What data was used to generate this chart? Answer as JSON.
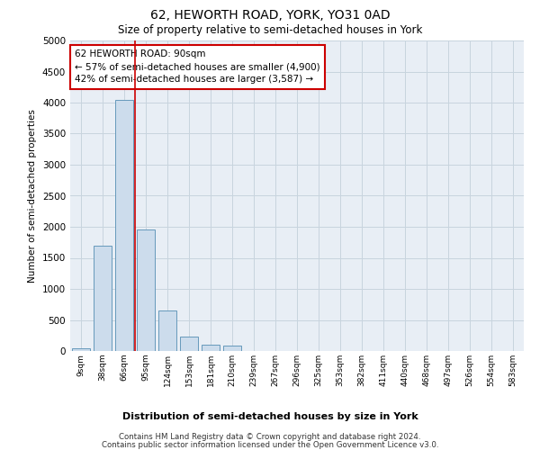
{
  "title": "62, HEWORTH ROAD, YORK, YO31 0AD",
  "subtitle": "Size of property relative to semi-detached houses in York",
  "xlabel": "Distribution of semi-detached houses by size in York",
  "ylabel": "Number of semi-detached properties",
  "bar_color": "#ccdcec",
  "bar_edge_color": "#6699bb",
  "vline_color": "#cc0000",
  "vline_x_index": 2,
  "annotation_text": "62 HEWORTH ROAD: 90sqm\n← 57% of semi-detached houses are smaller (4,900)\n42% of semi-detached houses are larger (3,587) →",
  "annotation_box_color": "#ffffff",
  "annotation_box_edge": "#cc0000",
  "categories": [
    "9sqm",
    "38sqm",
    "66sqm",
    "95sqm",
    "124sqm",
    "153sqm",
    "181sqm",
    "210sqm",
    "239sqm",
    "267sqm",
    "296sqm",
    "325sqm",
    "353sqm",
    "382sqm",
    "411sqm",
    "440sqm",
    "468sqm",
    "497sqm",
    "526sqm",
    "554sqm",
    "583sqm"
  ],
  "values": [
    50,
    1700,
    4050,
    1950,
    650,
    230,
    100,
    80,
    0,
    0,
    0,
    0,
    0,
    0,
    0,
    0,
    0,
    0,
    0,
    0,
    0
  ],
  "ylim": [
    0,
    5000
  ],
  "yticks": [
    0,
    500,
    1000,
    1500,
    2000,
    2500,
    3000,
    3500,
    4000,
    4500,
    5000
  ],
  "footer1": "Contains HM Land Registry data © Crown copyright and database right 2024.",
  "footer2": "Contains public sector information licensed under the Open Government Licence v3.0.",
  "background_color": "#ffffff",
  "plot_bg_color": "#e8eef5",
  "grid_color": "#c8d4de"
}
